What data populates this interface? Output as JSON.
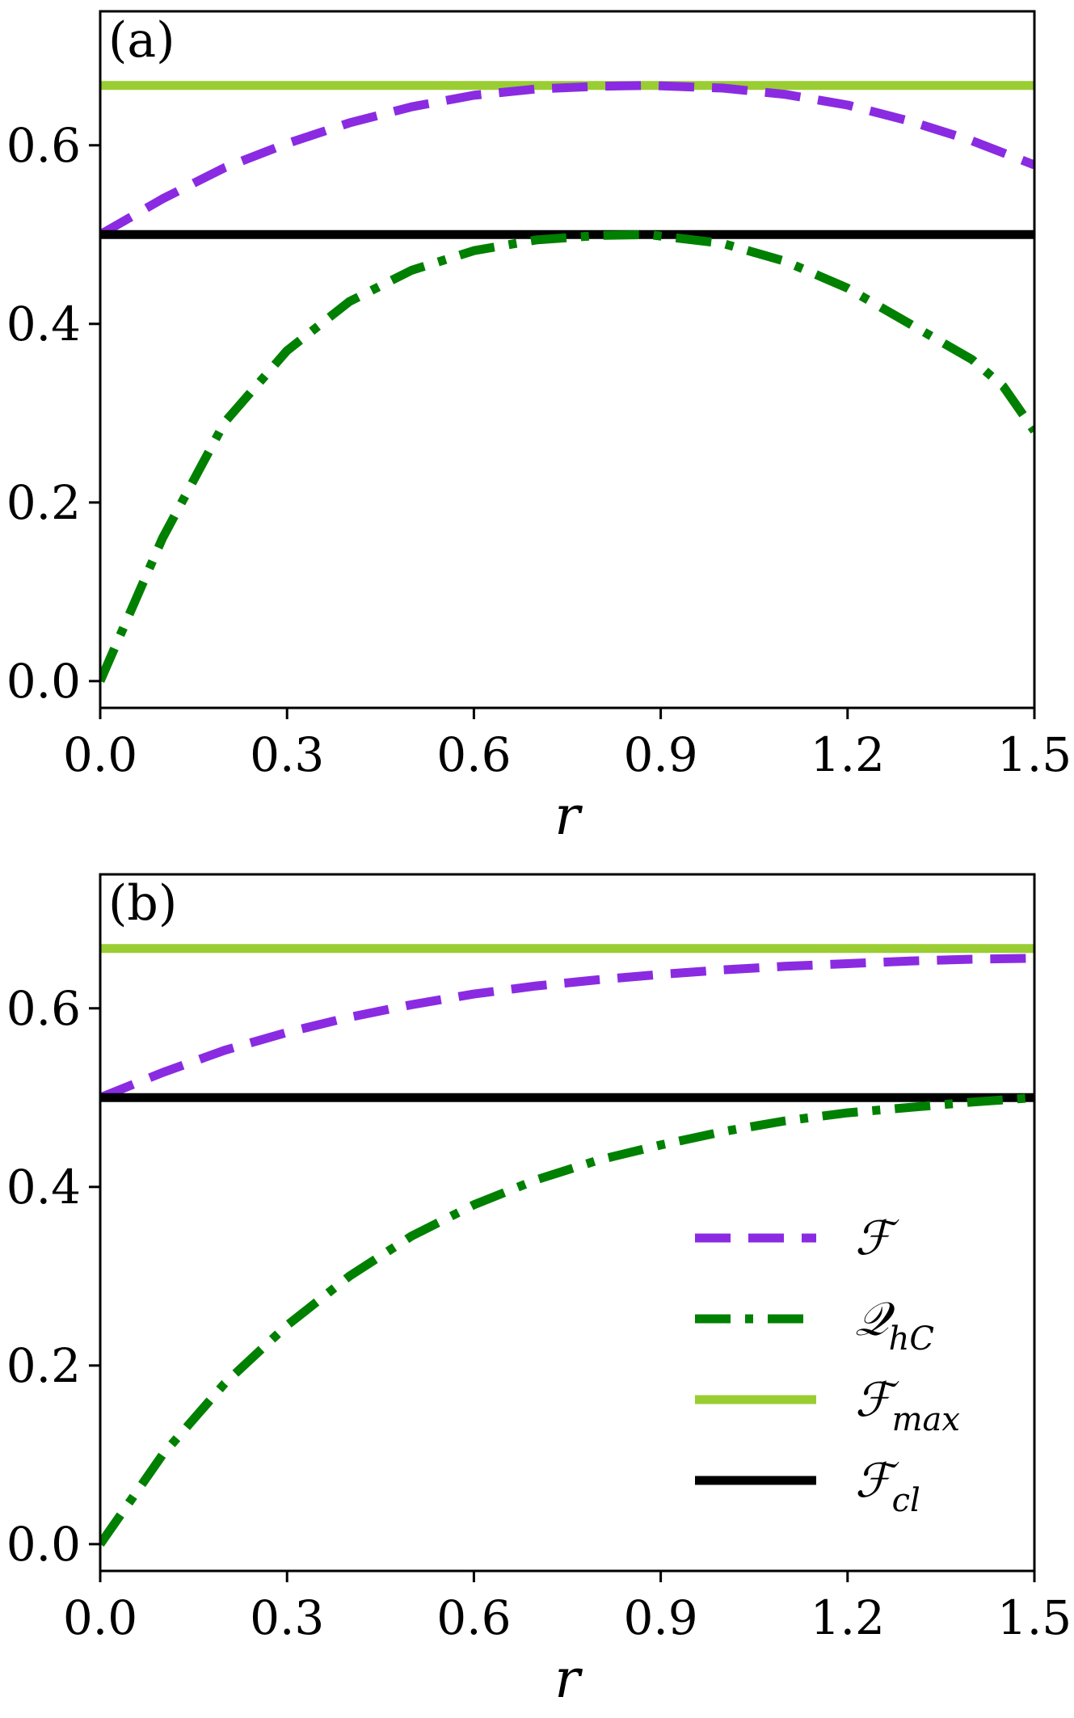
{
  "chart_data": [
    {
      "type": "line",
      "panel_label": "(a)",
      "xlabel": "r",
      "ylabel": "",
      "xlim": [
        0,
        1.5
      ],
      "ylim": [
        -0.03,
        0.75
      ],
      "xticks": [
        "0.0",
        "0.3",
        "0.6",
        "0.9",
        "1.2",
        "1.5"
      ],
      "yticks": [
        "0.0",
        "0.2",
        "0.4",
        "0.6"
      ],
      "grid": false,
      "series": [
        {
          "name": "F_max",
          "style": "solid-thick",
          "color": "#9acd32",
          "x": [
            0,
            1.5
          ],
          "y": [
            0.667,
            0.667
          ]
        },
        {
          "name": "F",
          "style": "dashed",
          "color": "#8a2be2",
          "x": [
            0,
            0.1,
            0.2,
            0.3,
            0.4,
            0.5,
            0.6,
            0.7,
            0.8,
            0.88,
            1.0,
            1.1,
            1.2,
            1.3,
            1.4,
            1.5
          ],
          "y": [
            0.5,
            0.54,
            0.575,
            0.602,
            0.625,
            0.643,
            0.656,
            0.663,
            0.666,
            0.667,
            0.664,
            0.657,
            0.645,
            0.627,
            0.605,
            0.578
          ]
        },
        {
          "name": "F_cl",
          "style": "solid-thick",
          "color": "#000000",
          "x": [
            0,
            1.5
          ],
          "y": [
            0.5,
            0.5
          ]
        },
        {
          "name": "Q_hC",
          "style": "dashdot",
          "color": "#008000",
          "x": [
            0,
            0.1,
            0.2,
            0.3,
            0.4,
            0.5,
            0.6,
            0.7,
            0.8,
            0.88,
            1.0,
            1.1,
            1.2,
            1.3,
            1.4,
            1.45,
            1.48,
            1.5
          ],
          "y": [
            0.0,
            0.16,
            0.29,
            0.37,
            0.425,
            0.46,
            0.482,
            0.494,
            0.499,
            0.5,
            0.49,
            0.47,
            0.44,
            0.4,
            0.36,
            0.33,
            0.3,
            0.28
          ]
        }
      ]
    },
    {
      "type": "line",
      "panel_label": "(b)",
      "xlabel": "r",
      "ylabel": "",
      "xlim": [
        0,
        1.5
      ],
      "ylim": [
        -0.03,
        0.75
      ],
      "xticks": [
        "0.0",
        "0.3",
        "0.6",
        "0.9",
        "1.2",
        "1.5"
      ],
      "yticks": [
        "0.0",
        "0.2",
        "0.4",
        "0.6"
      ],
      "grid": false,
      "legend": {
        "placement": "lower-right",
        "entries": [
          {
            "series": "F",
            "base": "ℱ",
            "sub": ""
          },
          {
            "series": "Q_hC",
            "base": "𝒬",
            "sub": "hC"
          },
          {
            "series": "F_max",
            "base": "ℱ",
            "sub": "max"
          },
          {
            "series": "F_cl",
            "base": "ℱ",
            "sub": "cl"
          }
        ]
      },
      "series": [
        {
          "name": "F_max",
          "style": "solid-thick",
          "color": "#9acd32",
          "x": [
            0,
            1.5
          ],
          "y": [
            0.667,
            0.667
          ]
        },
        {
          "name": "F",
          "style": "dashed",
          "color": "#8a2be2",
          "x": [
            0,
            0.1,
            0.2,
            0.3,
            0.4,
            0.5,
            0.6,
            0.7,
            0.8,
            0.9,
            1.0,
            1.1,
            1.2,
            1.3,
            1.4,
            1.5
          ],
          "y": [
            0.5,
            0.528,
            0.553,
            0.573,
            0.59,
            0.604,
            0.616,
            0.625,
            0.632,
            0.638,
            0.643,
            0.647,
            0.65,
            0.653,
            0.655,
            0.656
          ]
        },
        {
          "name": "F_cl",
          "style": "solid-thick",
          "color": "#000000",
          "x": [
            0,
            1.5
          ],
          "y": [
            0.5,
            0.5
          ]
        },
        {
          "name": "Q_hC",
          "style": "dashdot",
          "color": "#008000",
          "x": [
            0,
            0.1,
            0.2,
            0.3,
            0.4,
            0.5,
            0.6,
            0.7,
            0.8,
            0.9,
            1.0,
            1.1,
            1.2,
            1.3,
            1.4,
            1.5
          ],
          "y": [
            0.0,
            0.1,
            0.18,
            0.245,
            0.3,
            0.345,
            0.38,
            0.408,
            0.43,
            0.447,
            0.462,
            0.474,
            0.483,
            0.489,
            0.495,
            0.5
          ]
        }
      ]
    }
  ]
}
